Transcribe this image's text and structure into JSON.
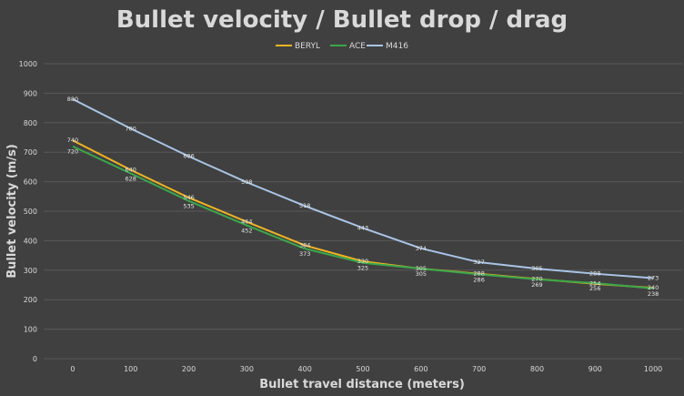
{
  "chart_data": {
    "type": "line",
    "title": "Bullet velocity / Bullet drop / drag",
    "xlabel": "Bullet travel distance (meters)",
    "ylabel": "Bullet velocity (m/s)",
    "categories": [
      "0",
      "100",
      "200",
      "300",
      "400",
      "500",
      "600",
      "700",
      "800",
      "900",
      "1000"
    ],
    "ylim": [
      0,
      1000
    ],
    "yticks": [
      "0",
      "100",
      "200",
      "300",
      "400",
      "500",
      "600",
      "700",
      "800",
      "900",
      "1000"
    ],
    "grid": true,
    "legend_position": "top",
    "series": [
      {
        "name": "BERYL",
        "color": "#f0b323",
        "values": [
          740,
          640,
          546,
          464,
          384,
          330,
          305,
          288,
          270,
          254,
          240
        ],
        "labels": [
          "740",
          "640",
          "546",
          "464",
          "384",
          "330",
          "305",
          "288",
          "270",
          "254",
          "240"
        ]
      },
      {
        "name": "ACE",
        "color": "#3aa84a",
        "values": [
          720,
          628,
          535,
          452,
          373,
          325,
          305,
          286,
          269,
          256,
          238
        ],
        "labels": [
          "720",
          "628",
          "535",
          "452",
          "373",
          "325",
          "305",
          "286",
          "269",
          "256",
          "238"
        ]
      },
      {
        "name": "M416",
        "color": "#a9c4e6",
        "values": [
          880,
          780,
          686,
          598,
          518,
          443,
          374,
          327,
          305,
          288,
          273
        ],
        "labels": [
          "880",
          "780",
          "686",
          "598",
          "518",
          "443",
          "374",
          "327",
          "305",
          "288",
          "273"
        ]
      }
    ]
  }
}
